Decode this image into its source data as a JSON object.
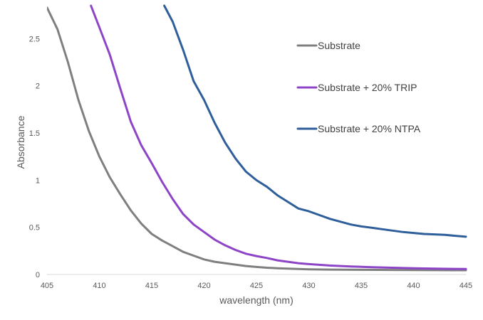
{
  "chart_data": {
    "type": "line",
    "title": "",
    "xlabel": "wavelength (nm)",
    "ylabel": "Absorbance",
    "xlim": [
      405,
      445
    ],
    "ylim": [
      0,
      2.85
    ],
    "xticks": [
      405,
      410,
      415,
      420,
      425,
      430,
      435,
      440,
      445
    ],
    "yticks": [
      0,
      0.5,
      1,
      1.5,
      2,
      2.5
    ],
    "grid": false,
    "legend_position": "right",
    "series": [
      {
        "name": "Substrate",
        "color": "#7F7F7F",
        "x": [
          405,
          406,
          407,
          408,
          409,
          410,
          411,
          412,
          413,
          414,
          415,
          416,
          417,
          418,
          419,
          420,
          421,
          422,
          423,
          424,
          425,
          426,
          427,
          428,
          429,
          430,
          432,
          435,
          438,
          440,
          442,
          445
        ],
        "y": [
          2.83,
          2.6,
          2.25,
          1.85,
          1.52,
          1.25,
          1.03,
          0.85,
          0.68,
          0.54,
          0.43,
          0.36,
          0.3,
          0.24,
          0.2,
          0.16,
          0.135,
          0.12,
          0.105,
          0.09,
          0.08,
          0.072,
          0.066,
          0.062,
          0.058,
          0.055,
          0.052,
          0.05,
          0.048,
          0.047,
          0.046,
          0.045
        ]
      },
      {
        "name": "Substrate + 20% TRIP",
        "color": "#8E44C6",
        "x": [
          409.2,
          410,
          411,
          412,
          413,
          414,
          415,
          416,
          417,
          418,
          419,
          420,
          421,
          422,
          423,
          424,
          425,
          426,
          427,
          428,
          429,
          430,
          432,
          434,
          436,
          438,
          440,
          442,
          445
        ],
        "y": [
          2.85,
          2.62,
          2.33,
          1.97,
          1.62,
          1.37,
          1.18,
          0.98,
          0.8,
          0.64,
          0.53,
          0.45,
          0.37,
          0.31,
          0.26,
          0.22,
          0.195,
          0.175,
          0.15,
          0.135,
          0.12,
          0.11,
          0.095,
          0.085,
          0.078,
          0.072,
          0.066,
          0.062,
          0.058
        ]
      },
      {
        "name": "Substrate + 20% NTPA",
        "color": "#2E5F9A",
        "x": [
          416.2,
          417,
          418,
          419,
          420,
          421,
          422,
          423,
          424,
          425,
          426,
          427,
          428,
          429,
          430,
          431,
          432,
          433,
          434,
          435,
          436,
          437,
          438,
          439,
          440,
          441,
          442,
          443,
          444,
          445
        ],
        "y": [
          2.85,
          2.68,
          2.38,
          2.05,
          1.85,
          1.61,
          1.4,
          1.23,
          1.09,
          1.0,
          0.93,
          0.84,
          0.77,
          0.7,
          0.67,
          0.63,
          0.59,
          0.56,
          0.53,
          0.51,
          0.495,
          0.48,
          0.465,
          0.45,
          0.44,
          0.43,
          0.425,
          0.42,
          0.41,
          0.4
        ]
      }
    ]
  }
}
